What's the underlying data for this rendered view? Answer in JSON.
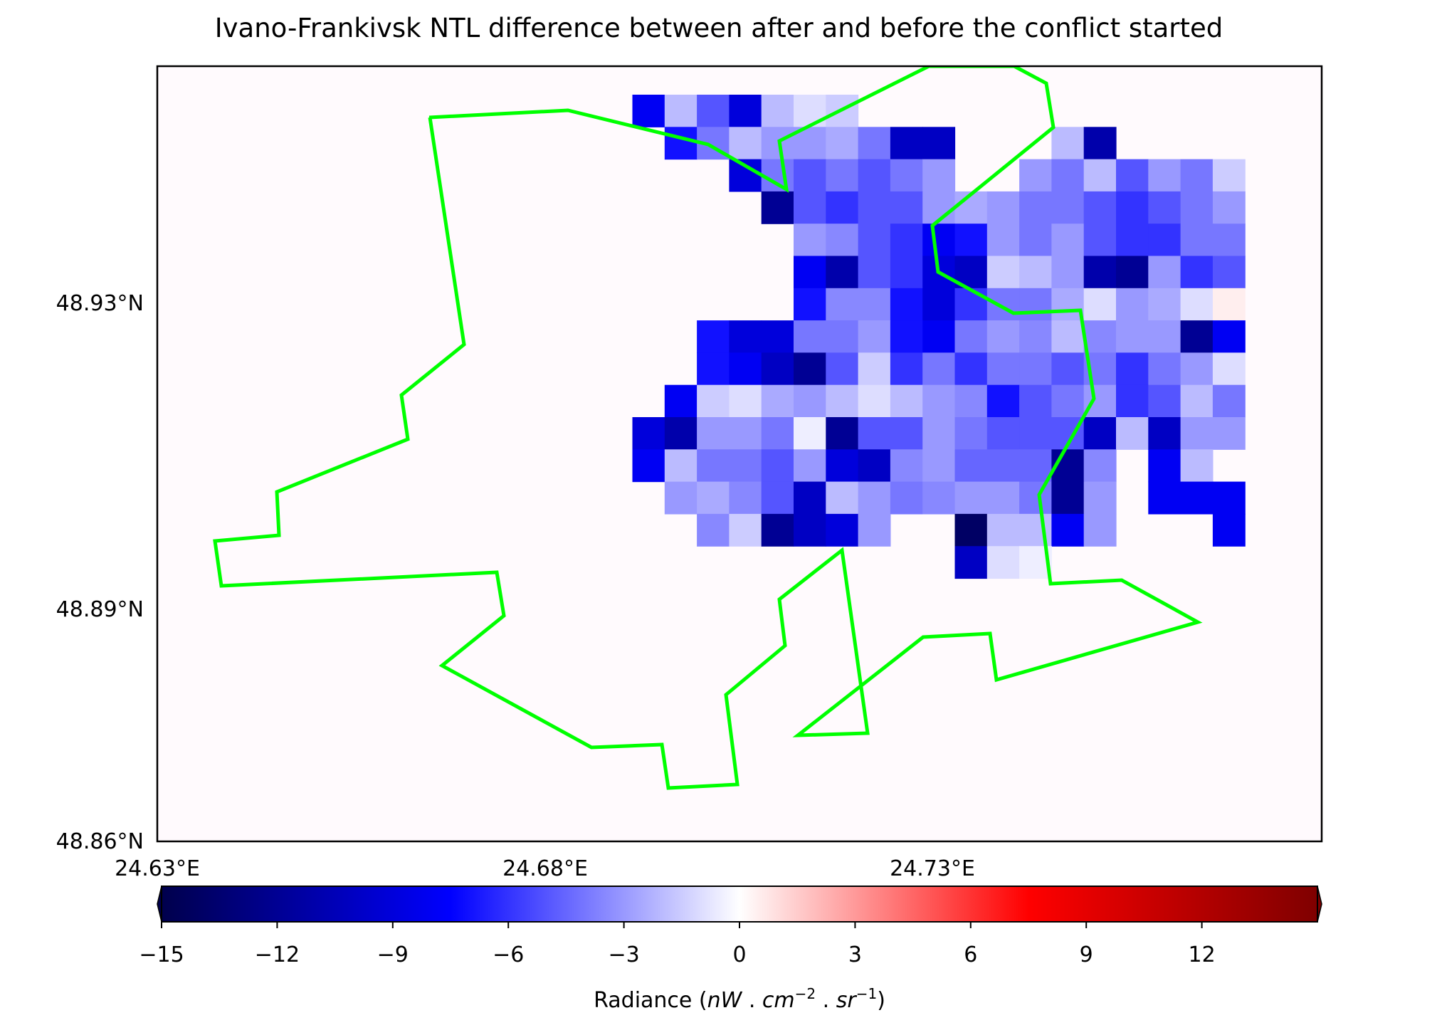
{
  "chart_data": {
    "type": "heatmap",
    "title": "Ivano-Frankivsk NTL difference between after and before the conflict started",
    "x_ticks": [
      "24.63°E",
      "24.68°E",
      "24.73°E"
    ],
    "y_ticks": [
      "48.93°N",
      "48.89°N",
      "48.86°N"
    ],
    "colorbar": {
      "colormap": "seismic",
      "range": [
        -15,
        15
      ],
      "extend": "both",
      "ticks": [
        "−15",
        "−12",
        "−9",
        "−6",
        "−3",
        "0",
        "3",
        "6",
        "9",
        "12"
      ],
      "label": "Radiance (nW . cm⁻² . sr⁻¹)",
      "label_plain": "Radiance (",
      "label_units": {
        "nW": "nW",
        "dot1": " . ",
        "cm": "cm",
        "cm_exp": "−2",
        "dot2": " . ",
        "sr": "sr",
        "sr_exp": "−1",
        "close": ")"
      }
    },
    "grid": false,
    "background_value": 0,
    "boundary_color": "#00ff00",
    "cells_note": "rows top-to-bottom, columns left-to-right; values are radiance difference, null = no data",
    "grid_cols": 24,
    "grid_rows": 15,
    "cells": [
      [
        null,
        null,
        null,
        null,
        null,
        -8,
        -2,
        -5,
        -9,
        -2,
        -1,
        -1.5,
        null,
        null,
        null,
        null,
        null,
        null,
        null,
        null,
        null,
        null,
        null,
        null
      ],
      [
        null,
        null,
        null,
        null,
        null,
        null,
        -7,
        -4,
        -2,
        -3,
        -3,
        -2.5,
        -4,
        -10,
        -10,
        null,
        null,
        null,
        -2,
        -11,
        null,
        null,
        null,
        null
      ],
      [
        null,
        null,
        null,
        null,
        null,
        null,
        null,
        null,
        -9,
        -4,
        -5,
        -4,
        -5,
        -4,
        -3,
        null,
        null,
        -3,
        -4,
        -2,
        -5,
        -3,
        -4,
        -1.5
      ],
      [
        null,
        null,
        null,
        null,
        null,
        null,
        null,
        null,
        null,
        -12,
        -5,
        -6,
        -5,
        -5,
        -3,
        -2.5,
        -3,
        -4,
        -4,
        -5,
        -6,
        -5,
        -4,
        -3
      ],
      [
        null,
        null,
        null,
        null,
        null,
        null,
        null,
        null,
        null,
        null,
        -3,
        -3.5,
        -5,
        -6,
        -8,
        -7,
        -3,
        -4,
        -3,
        -5,
        -6,
        -6,
        -4,
        -4
      ],
      [
        null,
        null,
        null,
        null,
        null,
        null,
        null,
        null,
        null,
        null,
        -8,
        -11,
        -5,
        -6,
        -9,
        -10,
        -1.5,
        -2,
        -3,
        -11,
        -12,
        -3,
        -6,
        -5
      ],
      [
        null,
        null,
        null,
        null,
        null,
        null,
        null,
        null,
        null,
        null,
        -7,
        -3.5,
        -3.5,
        -7,
        -9,
        -6,
        -4,
        -4,
        -2.5,
        -1,
        -3,
        -2.5,
        -1,
        0.5
      ],
      [
        null,
        null,
        null,
        null,
        null,
        null,
        null,
        -7,
        -9,
        -9,
        -4,
        -4,
        -3,
        -7,
        -8,
        -4,
        -3,
        -3.5,
        -2,
        -3.5,
        -3,
        -3,
        -12,
        -8
      ],
      [
        null,
        null,
        null,
        null,
        null,
        null,
        null,
        -7,
        -8,
        -10,
        -12,
        -5,
        -1.5,
        -6,
        -4,
        -6,
        -4,
        -4,
        -5,
        -4,
        -6,
        -4,
        -3,
        -1
      ],
      [
        null,
        null,
        null,
        null,
        null,
        null,
        -8,
        -1.5,
        -1,
        -2.5,
        -3,
        -2,
        -1,
        -2,
        -3,
        -3.5,
        -7,
        -5,
        -4,
        -3,
        -6,
        -5,
        -2,
        -4
      ],
      [
        null,
        null,
        null,
        null,
        null,
        -9,
        -11,
        -3,
        -3,
        -4,
        -0.5,
        -12,
        -5,
        -5,
        -3,
        -4,
        -5,
        -5,
        -5,
        -10,
        -2,
        -10,
        -3,
        -3
      ],
      [
        null,
        null,
        null,
        null,
        null,
        -8,
        -2,
        -4,
        -4,
        -5,
        -3,
        -9,
        -10,
        -3.5,
        -3,
        -4.5,
        -4.5,
        -4.5,
        -12,
        -3.5,
        null,
        -8,
        -2,
        null
      ],
      [
        null,
        null,
        null,
        null,
        null,
        null,
        -3,
        -2.5,
        -3.5,
        -5,
        -10,
        -2,
        -3,
        -4,
        -3.5,
        -3,
        -3,
        -4,
        -12,
        -3,
        null,
        -8,
        -8,
        -8
      ],
      [
        null,
        null,
        null,
        null,
        null,
        null,
        null,
        -3.5,
        -1.5,
        -12,
        -10,
        -9,
        -3,
        null,
        null,
        -14,
        -2,
        -2,
        -8,
        -3,
        null,
        null,
        null,
        -8
      ],
      [
        null,
        null,
        null,
        null,
        null,
        null,
        null,
        null,
        null,
        null,
        null,
        null,
        null,
        null,
        null,
        -10,
        -1,
        -0.5,
        null,
        null,
        null,
        null,
        null,
        null
      ]
    ]
  }
}
